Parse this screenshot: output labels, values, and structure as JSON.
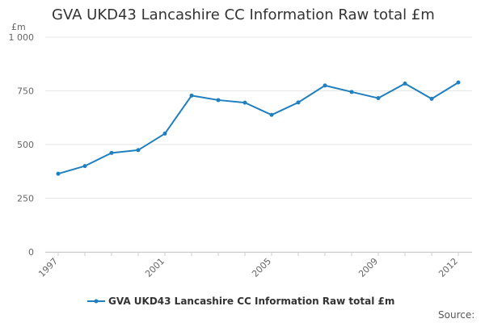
{
  "chart_data": {
    "type": "line",
    "title": "GVA UKD43 Lancashire CC Information Raw total £m",
    "ylabel": "£m",
    "xlabel": "",
    "ylim": [
      0,
      1000
    ],
    "yticks": [
      0,
      250,
      500,
      750,
      1000
    ],
    "ytick_labels": [
      "0",
      "250",
      "500",
      "750",
      "1 000"
    ],
    "xlim": [
      1997,
      2012
    ],
    "xticks": [
      1997,
      2001,
      2005,
      2009,
      2012
    ],
    "xtick_labels": [
      "1997",
      "2001",
      "2005",
      "2009",
      "2012"
    ],
    "grid": true,
    "legend_position": "bottom",
    "series": [
      {
        "name": "GVA UKD43 Lancashire CC Information Raw total £m",
        "color": "#1f7fbf",
        "x": [
          1997,
          1998,
          1999,
          2000,
          2001,
          2002,
          2003,
          2004,
          2005,
          2006,
          2007,
          2008,
          2009,
          2010,
          2011,
          2012
        ],
        "values": [
          364,
          400,
          461,
          474,
          551,
          728,
          707,
          695,
          638,
          696,
          775,
          745,
          716,
          784,
          713,
          789
        ]
      }
    ]
  },
  "source_label": "Source:"
}
